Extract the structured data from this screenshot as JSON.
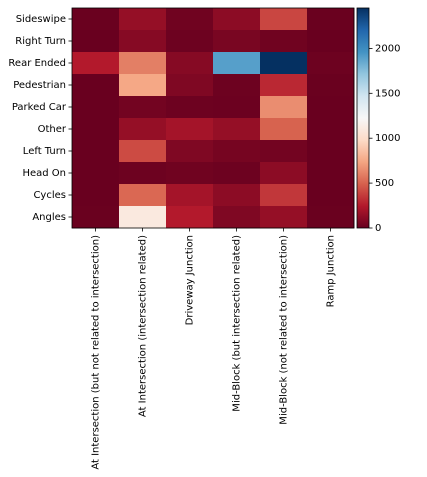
{
  "chart_data": {
    "type": "heatmap",
    "title": "",
    "xlabel": "",
    "ylabel": "",
    "x_categories": [
      "At Intersection (but not related to intersection)",
      "At Intersection (intersection related)",
      "Driveway Junction",
      "Mid-Block (but intersection related)",
      "Mid-Block (not related to intersection)",
      "Ramp Junction"
    ],
    "y_categories": [
      "Sideswipe",
      "Right Turn",
      "Rear Ended",
      "Pedestrian",
      "Parked Car",
      "Other",
      "Left Turn",
      "Head On",
      "Cycles",
      "Angles"
    ],
    "values": [
      [
        10,
        150,
        30,
        120,
        400,
        10
      ],
      [
        5,
        100,
        20,
        60,
        30,
        5
      ],
      [
        250,
        600,
        100,
        1900,
        2450,
        20
      ],
      [
        5,
        750,
        80,
        20,
        300,
        10
      ],
      [
        5,
        40,
        20,
        15,
        650,
        5
      ],
      [
        5,
        150,
        200,
        150,
        500,
        5
      ],
      [
        5,
        420,
        80,
        50,
        40,
        5
      ],
      [
        5,
        20,
        30,
        20,
        120,
        5
      ],
      [
        5,
        520,
        200,
        120,
        350,
        5
      ],
      [
        10,
        1100,
        250,
        80,
        150,
        10
      ]
    ],
    "colormap": "RdBu",
    "colorbar": {
      "min": 0,
      "max": 2450,
      "ticks": [
        0,
        500,
        1000,
        1500,
        2000
      ]
    },
    "grid": false
  }
}
